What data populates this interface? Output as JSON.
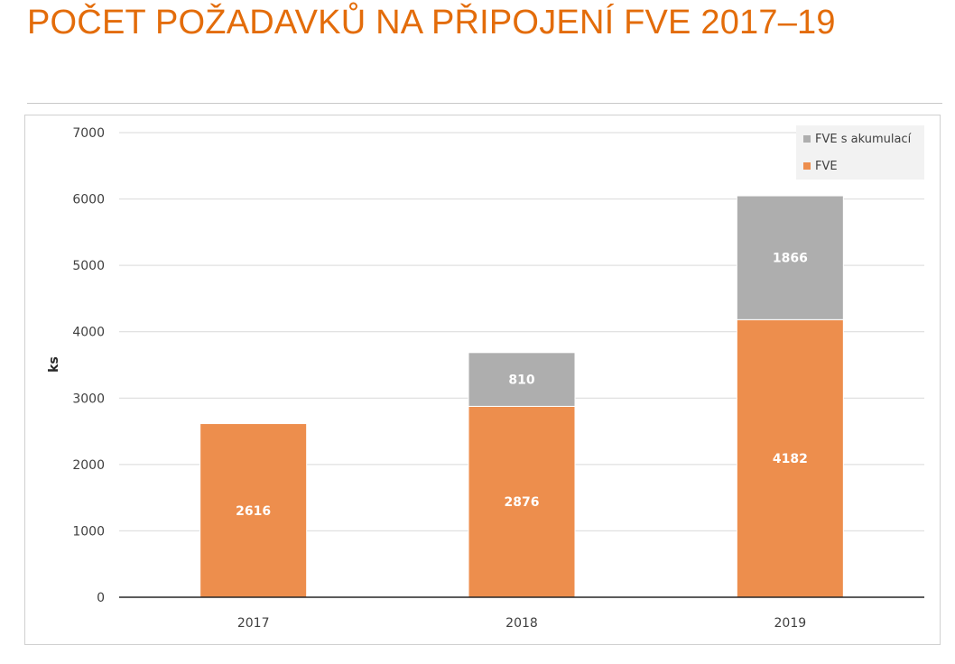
{
  "title": "POČET POŽADAVKŮ NA PŘIPOJENÍ FVE 2017–19",
  "chart_data": {
    "type": "bar",
    "stacked": true,
    "categories": [
      "2017",
      "2018",
      "2019"
    ],
    "series": [
      {
        "name": "FVE",
        "color": "#ed8e4d",
        "values": [
          2616,
          2876,
          4182
        ]
      },
      {
        "name": "FVE s akumulací",
        "color": "#aeaeae",
        "values": [
          0,
          810,
          1866
        ]
      }
    ],
    "data_labels": [
      [
        "2616",
        "2876",
        "4182"
      ],
      [
        "",
        "810",
        "1866"
      ]
    ],
    "ylabel": "ks",
    "xlabel": "",
    "ylim": [
      0,
      7000
    ],
    "yticks": [
      0,
      1000,
      2000,
      3000,
      4000,
      5000,
      6000,
      7000
    ],
    "grid": true,
    "legend_position": "top-right"
  }
}
